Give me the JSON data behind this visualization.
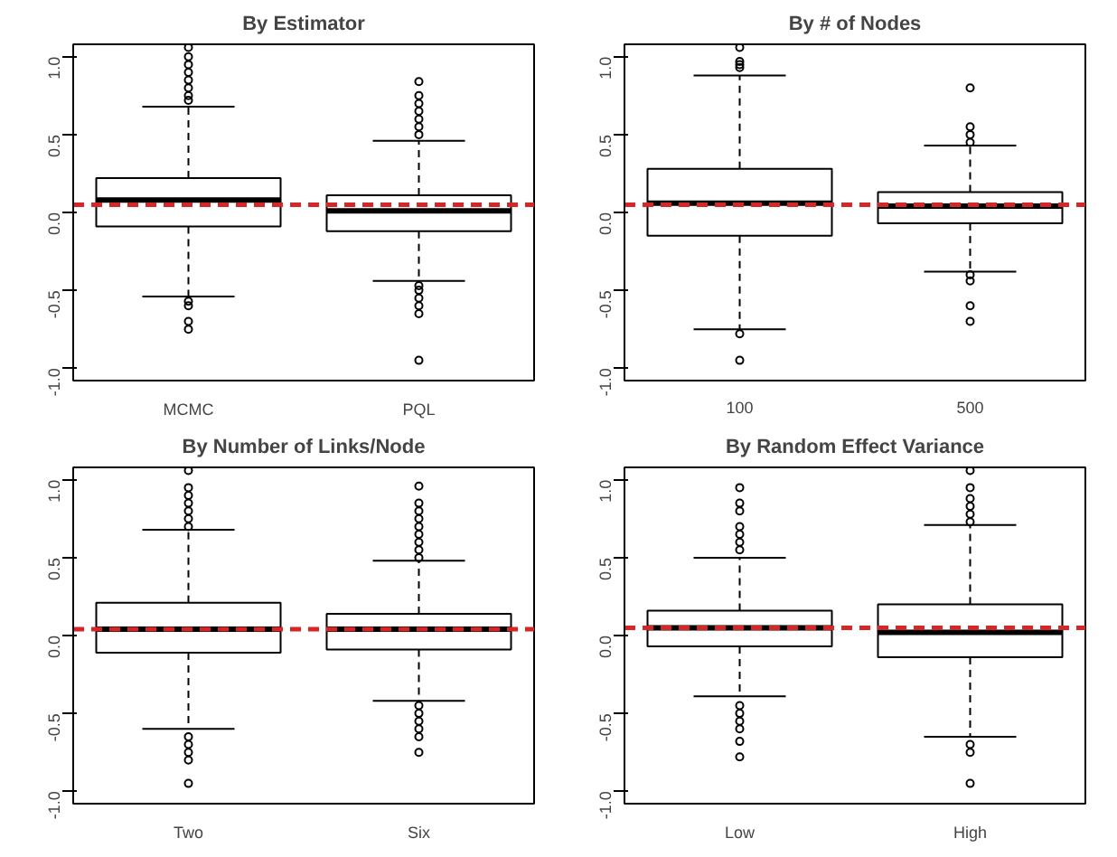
{
  "chart_data": [
    {
      "type": "box",
      "title": "By Estimator",
      "categories": [
        "MCMC",
        "PQL"
      ],
      "boxes": [
        {
          "low": -0.54,
          "q1": -0.09,
          "median": 0.08,
          "q3": 0.22,
          "high": 0.68,
          "outliers": [
            0.72,
            0.75,
            0.8,
            0.85,
            0.9,
            0.95,
            1.0,
            1.06,
            -0.57,
            -0.6,
            -0.7,
            -0.75
          ]
        },
        {
          "low": -0.44,
          "q1": -0.12,
          "median": 0.01,
          "q3": 0.11,
          "high": 0.46,
          "outliers": [
            0.5,
            0.55,
            0.6,
            0.65,
            0.7,
            0.75,
            0.84,
            -0.47,
            -0.5,
            -0.55,
            -0.6,
            -0.65,
            -0.95
          ]
        }
      ],
      "ylim": [
        -1.08,
        1.08
      ],
      "yticks": [
        {
          "value": -1,
          "label": "-1.0"
        },
        {
          "value": -0.5,
          "label": "-0.5"
        },
        {
          "value": 0,
          "label": "0.0"
        },
        {
          "value": 0.5,
          "label": "0.5"
        },
        {
          "value": 1,
          "label": "1.0"
        }
      ],
      "ref_lines": [
        {
          "axis": "y",
          "value": 0.05,
          "color": "#d62728",
          "line_style": "dashed"
        }
      ],
      "grid": false
    },
    {
      "type": "box",
      "title": "By # of Nodes",
      "categories": [
        "100",
        "500"
      ],
      "boxes": [
        {
          "low": -0.75,
          "q1": -0.15,
          "median": 0.06,
          "q3": 0.28,
          "high": 0.88,
          "outliers": [
            0.93,
            0.95,
            0.97,
            1.06,
            -0.78,
            -0.95
          ]
        },
        {
          "low": -0.38,
          "q1": -0.07,
          "median": 0.04,
          "q3": 0.13,
          "high": 0.43,
          "outliers": [
            0.45,
            0.5,
            0.55,
            0.8,
            -0.4,
            -0.44,
            -0.6,
            -0.7
          ]
        }
      ],
      "ylim": [
        -1.08,
        1.08
      ],
      "yticks": [
        {
          "value": -1,
          "label": "-1.0"
        },
        {
          "value": -0.5,
          "label": "-0.5"
        },
        {
          "value": 0,
          "label": "0.0"
        },
        {
          "value": 0.5,
          "label": "0.5"
        },
        {
          "value": 1,
          "label": "1.0"
        }
      ],
      "ref_lines": [
        {
          "axis": "y",
          "value": 0.05,
          "color": "#d62728",
          "line_style": "dashed"
        }
      ],
      "grid": false
    },
    {
      "type": "box",
      "title": "By Number of Links/Node",
      "categories": [
        "Two",
        "Six"
      ],
      "boxes": [
        {
          "low": -0.6,
          "q1": -0.11,
          "median": 0.04,
          "q3": 0.21,
          "high": 0.68,
          "outliers": [
            0.7,
            0.75,
            0.8,
            0.85,
            0.9,
            0.95,
            1.06,
            -0.65,
            -0.7,
            -0.75,
            -0.8,
            -0.95
          ]
        },
        {
          "low": -0.42,
          "q1": -0.09,
          "median": 0.04,
          "q3": 0.14,
          "high": 0.48,
          "outliers": [
            0.5,
            0.55,
            0.6,
            0.65,
            0.7,
            0.75,
            0.8,
            0.85,
            0.96,
            -0.45,
            -0.5,
            -0.55,
            -0.6,
            -0.65,
            -0.75
          ]
        }
      ],
      "ylim": [
        -1.08,
        1.08
      ],
      "yticks": [
        {
          "value": -1,
          "label": "-1.0"
        },
        {
          "value": -0.5,
          "label": "-0.5"
        },
        {
          "value": 0,
          "label": "0.0"
        },
        {
          "value": 0.5,
          "label": "0.5"
        },
        {
          "value": 1,
          "label": "1.0"
        }
      ],
      "ref_lines": [
        {
          "axis": "y",
          "value": 0.04,
          "color": "#d62728",
          "line_style": "dashed"
        }
      ],
      "grid": false
    },
    {
      "type": "box",
      "title": "By Random Effect Variance",
      "categories": [
        "Low",
        "High"
      ],
      "boxes": [
        {
          "low": -0.39,
          "q1": -0.07,
          "median": 0.05,
          "q3": 0.16,
          "high": 0.5,
          "outliers": [
            0.55,
            0.6,
            0.65,
            0.7,
            0.8,
            0.85,
            0.95,
            -0.45,
            -0.5,
            -0.55,
            -0.6,
            -0.68,
            -0.78
          ]
        },
        {
          "low": -0.65,
          "q1": -0.14,
          "median": 0.02,
          "q3": 0.2,
          "high": 0.71,
          "outliers": [
            0.73,
            0.78,
            0.83,
            0.88,
            0.95,
            1.06,
            -0.7,
            -0.75,
            -0.95
          ]
        }
      ],
      "ylim": [
        -1.08,
        1.08
      ],
      "yticks": [
        {
          "value": -1,
          "label": "-1.0"
        },
        {
          "value": -0.5,
          "label": "-0.5"
        },
        {
          "value": 0,
          "label": "0.0"
        },
        {
          "value": 0.5,
          "label": "0.5"
        },
        {
          "value": 1,
          "label": "1.0"
        }
      ],
      "ref_lines": [
        {
          "axis": "y",
          "value": 0.05,
          "color": "#d62728",
          "line_style": "dashed"
        }
      ],
      "grid": false
    }
  ]
}
